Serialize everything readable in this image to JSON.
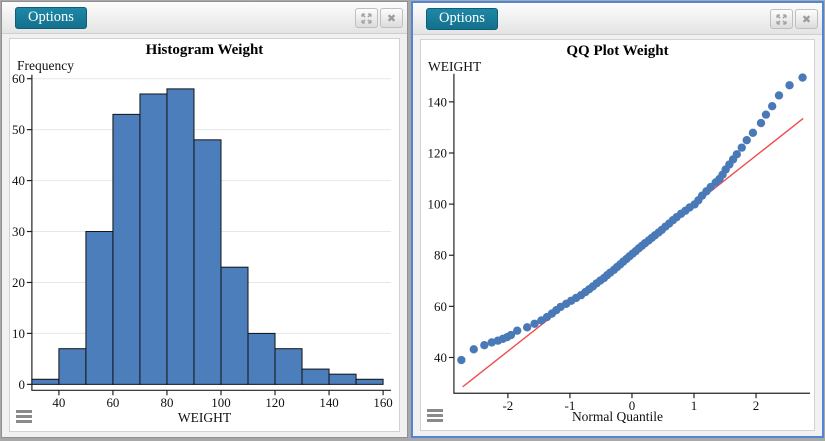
{
  "panels": [
    {
      "options_label": "Options",
      "selected": false
    },
    {
      "options_label": "Options",
      "selected": true
    }
  ],
  "colors": {
    "accent_teal": "#177b9c",
    "selected_panel_border": "#4f86d8",
    "bar_fill": "#4d7ebc",
    "bar_stroke": "#111111",
    "point_fill": "#4a79b8",
    "ref_line": "#f04a4e",
    "grid": "#e7e7e7",
    "axis": "#222222",
    "tick_text": "#111111"
  },
  "chart_data": [
    {
      "type": "bar",
      "subtype": "histogram",
      "title": "Histogram Weight",
      "xlabel": "WEIGHT",
      "ylabel": "Frequency",
      "bin_start": 30,
      "bin_width": 10,
      "bin_edges": [
        30,
        40,
        50,
        60,
        70,
        80,
        90,
        100,
        110,
        120,
        130,
        140,
        150,
        160
      ],
      "counts": [
        1,
        7,
        30,
        53,
        57,
        58,
        48,
        23,
        10,
        7,
        3,
        2,
        1
      ],
      "xticks": [
        40,
        60,
        80,
        100,
        120,
        140,
        160
      ],
      "yticks": [
        0,
        10,
        20,
        30,
        40,
        50,
        60
      ],
      "xlim": [
        30,
        160
      ],
      "ylim": [
        0,
        60
      ],
      "grid": "horizontal",
      "legend": "none"
    },
    {
      "type": "scatter",
      "subtype": "qq-plot",
      "title": "QQ Plot Weight",
      "xlabel": "Normal Quantile",
      "ylabel": "WEIGHT",
      "xticks": [
        -2,
        -1,
        0,
        1,
        2
      ],
      "yticks": [
        40,
        60,
        80,
        100,
        120,
        140
      ],
      "xlim": [
        -2.87,
        2.87
      ],
      "ylim": [
        26,
        151
      ],
      "grid": "off",
      "ref_line": {
        "x1": -2.73,
        "y1": 28.5,
        "x2": 2.76,
        "y2": 133.5
      },
      "points": [
        [
          -2.75,
          39
        ],
        [
          -2.55,
          43.2
        ],
        [
          -2.38,
          44.8
        ],
        [
          -2.26,
          45.9
        ],
        [
          -2.16,
          46.6
        ],
        [
          -2.08,
          47.3
        ],
        [
          -2.01,
          48.0
        ],
        [
          -1.95,
          48.8
        ],
        [
          -1.85,
          50.5
        ],
        [
          -1.69,
          51.8
        ],
        [
          -1.57,
          53.2
        ],
        [
          -1.46,
          54.5
        ],
        [
          -1.37,
          55.8
        ],
        [
          -1.29,
          57.2
        ],
        [
          -1.22,
          58.5
        ],
        [
          -1.15,
          59.8
        ],
        [
          -1.06,
          61.0
        ],
        [
          -0.98,
          62.2
        ],
        [
          -0.9,
          63.3
        ],
        [
          -0.82,
          64.4
        ],
        [
          -0.75,
          65.6
        ],
        [
          -0.69,
          66.7
        ],
        [
          -0.63,
          67.8
        ],
        [
          -0.57,
          69.0
        ],
        [
          -0.51,
          70.1
        ],
        [
          -0.45,
          71.1
        ],
        [
          -0.4,
          72.2
        ],
        [
          -0.35,
          73.2
        ],
        [
          -0.29,
          74.3
        ],
        [
          -0.24,
          75.4
        ],
        [
          -0.19,
          76.4
        ],
        [
          -0.14,
          77.5
        ],
        [
          -0.09,
          78.5
        ],
        [
          -0.04,
          79.6
        ],
        [
          0.01,
          80.6
        ],
        [
          0.06,
          81.6
        ],
        [
          0.11,
          82.7
        ],
        [
          0.16,
          83.7
        ],
        [
          0.21,
          84.7
        ],
        [
          0.27,
          85.8
        ],
        [
          0.32,
          86.8
        ],
        [
          0.37,
          87.8
        ],
        [
          0.43,
          88.9
        ],
        [
          0.48,
          89.9
        ],
        [
          0.54,
          91.2
        ],
        [
          0.6,
          92.4
        ],
        [
          0.66,
          93.7
        ],
        [
          0.72,
          94.9
        ],
        [
          0.79,
          96.2
        ],
        [
          0.86,
          97.4
        ],
        [
          0.93,
          98.7
        ],
        [
          1.01,
          99.9
        ],
        [
          1.07,
          101.5
        ],
        [
          1.13,
          103.3
        ],
        [
          1.2,
          105.0
        ],
        [
          1.27,
          106.7
        ],
        [
          1.35,
          108.5
        ],
        [
          1.41,
          109.8
        ],
        [
          1.46,
          111.5
        ],
        [
          1.51,
          113.5
        ],
        [
          1.57,
          115.5
        ],
        [
          1.63,
          117.5
        ],
        [
          1.69,
          119.5
        ],
        [
          1.77,
          122.1
        ],
        [
          1.85,
          125.0
        ],
        [
          1.95,
          127.9
        ],
        [
          2.08,
          131.7
        ],
        [
          2.16,
          135.0
        ],
        [
          2.26,
          138.3
        ],
        [
          2.37,
          142.5
        ],
        [
          2.54,
          146.5
        ],
        [
          2.75,
          149.5
        ]
      ]
    }
  ]
}
